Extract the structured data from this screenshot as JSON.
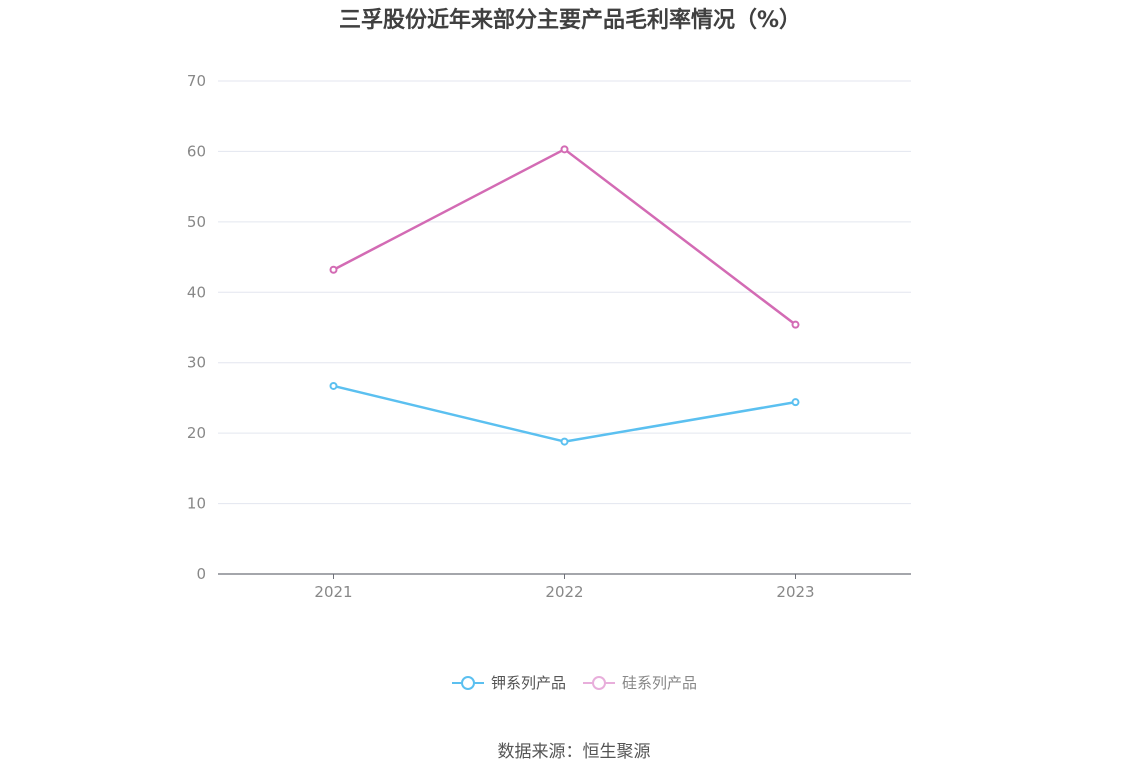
{
  "chart_data": {
    "type": "line",
    "title": "三孚股份近年来部分主要产品毛利率情况（%）",
    "categories": [
      "2021",
      "2022",
      "2023"
    ],
    "series": [
      {
        "name": "钾系列产品",
        "color": "#5bc0f0",
        "values": [
          26.7,
          18.8,
          24.4
        ]
      },
      {
        "name": "硅系列产品",
        "color": "#d36bb4",
        "values": [
          43.2,
          60.3,
          35.4
        ]
      }
    ],
    "ylim": [
      0,
      70
    ],
    "yticks": [
      0,
      10,
      20,
      30,
      40,
      50,
      60,
      70
    ],
    "xlabel": "",
    "ylabel": "",
    "grid": true,
    "legend": "bottom-center"
  },
  "source": "数据来源：恒生聚源"
}
